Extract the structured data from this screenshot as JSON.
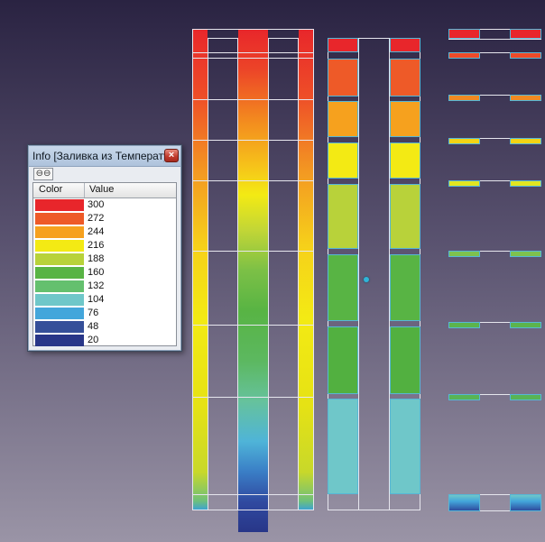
{
  "info_window": {
    "title": "Info [Заливка из Температу...",
    "close_symbol": "×",
    "link_icon_glyph": "⊖⊖",
    "columns": {
      "color": "Color",
      "value": "Value"
    },
    "legend": [
      {
        "value": "300",
        "color": "#e8262b"
      },
      {
        "value": "272",
        "color": "#ee5a28"
      },
      {
        "value": "244",
        "color": "#f6a11e"
      },
      {
        "value": "216",
        "color": "#f3ea14"
      },
      {
        "value": "188",
        "color": "#b8d23a"
      },
      {
        "value": "160",
        "color": "#58b444"
      },
      {
        "value": "132",
        "color": "#64c06e"
      },
      {
        "value": "104",
        "color": "#6fc7c9"
      },
      {
        "value": "76",
        "color": "#43a6db"
      },
      {
        "value": "48",
        "color": "#354f99"
      },
      {
        "value": "20",
        "color": "#283688"
      }
    ]
  }
}
